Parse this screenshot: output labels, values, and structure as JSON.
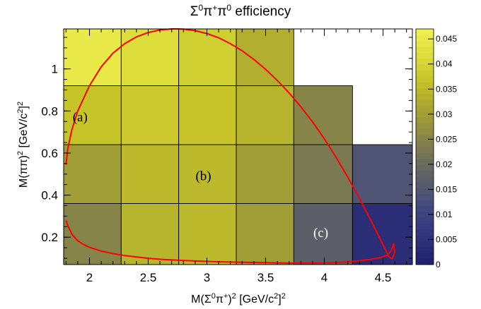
{
  "chart_data": {
    "type": "heatmap",
    "title": "Σ⁰π⁺π⁰ efficiency",
    "title_parts": [
      "Σ",
      "0",
      "π",
      "+",
      "π",
      "0",
      " efficiency"
    ],
    "xlabel": "M(Σ⁰π⁺)² [GeV/c²]²",
    "xlabel_parts": [
      "M(Σ",
      "0",
      "π",
      "+",
      ")",
      "2",
      " [GeV/c",
      "2",
      "]",
      "2"
    ],
    "ylabel": "M(ππ)² [GeV/c²]²",
    "ylabel_parts": [
      "M(ππ)",
      "2",
      " [GeV/c",
      "2",
      "]",
      "2"
    ],
    "xlim": [
      1.78,
      4.75
    ],
    "ylim": [
      0.07,
      1.19
    ],
    "x_ticks": [
      2,
      2.5,
      3,
      3.5,
      4,
      4.5
    ],
    "x_tick_labels": [
      "2",
      "2.5",
      "3",
      "3.5",
      "4",
      "4.5"
    ],
    "y_ticks": [
      0.2,
      0.4,
      0.6,
      0.8,
      1.0
    ],
    "y_tick_labels": [
      "0.2",
      "0.4",
      "0.6",
      "0.8",
      "1"
    ],
    "x_bin_edges": [
      1.78,
      2.27,
      2.76,
      3.25,
      3.74,
      4.24,
      4.75
    ],
    "y_bin_edges": [
      0.07,
      0.36,
      0.64,
      0.92,
      1.19
    ],
    "efficiency_rows_bottom_to_top": [
      [
        0.025,
        0.034,
        0.035,
        0.03,
        0.017,
        0.004
      ],
      [
        0.03,
        0.035,
        0.035,
        0.03,
        0.023,
        0.014
      ],
      [
        0.037,
        0.038,
        0.037,
        0.034,
        0.025,
        null
      ],
      [
        0.045,
        0.042,
        0.039,
        0.033,
        null,
        null
      ]
    ],
    "zlim": [
      0,
      0.047
    ],
    "colorbar_ticks": [
      0,
      0.005,
      0.01,
      0.015,
      0.02,
      0.025,
      0.03,
      0.035,
      0.04,
      0.045
    ],
    "colorbar_tick_labels": [
      "0",
      "0.005",
      "0.01",
      "0.015",
      "0.02",
      "0.025",
      "0.03",
      "0.035",
      "0.04",
      "0.045"
    ],
    "colorscale": [
      "#1f1f6e",
      "#2f317a",
      "#3f4482",
      "#565a6e",
      "#6e6e5a",
      "#8d8a44",
      "#a9a532",
      "#c5c229",
      "#dcdd3a",
      "#f1f152"
    ],
    "boundary_curve_color": "#ff0000",
    "dalitz_boundary": {
      "x": [
        1.8,
        1.815,
        1.85,
        1.9,
        1.95,
        2.0,
        2.1,
        2.2,
        2.3,
        2.4,
        2.5,
        2.6,
        2.7,
        2.755,
        2.8,
        2.9,
        3.0,
        3.1,
        3.2,
        3.3,
        3.4,
        3.5,
        3.6,
        3.7,
        3.8,
        3.9,
        4.0,
        4.1,
        4.2,
        4.3,
        4.4,
        4.5,
        4.55,
        4.58,
        4.6,
        4.59,
        4.57,
        4.54,
        4.48,
        4.4,
        4.3,
        4.2,
        4.1,
        4.0,
        3.9,
        3.8,
        3.7,
        3.6,
        3.5,
        3.4,
        3.3,
        3.2,
        3.1,
        3.0,
        2.9,
        2.8,
        2.7,
        2.6,
        2.5,
        2.4,
        2.3,
        2.2,
        2.1,
        2.0,
        1.95,
        1.9,
        1.85,
        1.815,
        1.8
      ],
      "y": [
        0.545,
        0.62,
        0.71,
        0.8,
        0.86,
        0.92,
        1.01,
        1.075,
        1.12,
        1.152,
        1.173,
        1.185,
        1.19,
        1.19,
        1.189,
        1.182,
        1.168,
        1.148,
        1.12,
        1.086,
        1.045,
        0.998,
        0.945,
        0.886,
        0.82,
        0.748,
        0.668,
        0.58,
        0.485,
        0.383,
        0.276,
        0.164,
        0.106,
        0.098,
        0.13,
        0.17,
        0.135,
        0.116,
        0.104,
        0.095,
        0.088,
        0.083,
        0.08,
        0.078,
        0.077,
        0.077,
        0.077,
        0.078,
        0.079,
        0.08,
        0.081,
        0.082,
        0.083,
        0.085,
        0.087,
        0.089,
        0.092,
        0.095,
        0.1,
        0.106,
        0.113,
        0.122,
        0.134,
        0.152,
        0.165,
        0.183,
        0.215,
        0.255,
        0.28
      ]
    },
    "annotations": [
      {
        "text": "(a)",
        "x": 1.92,
        "y": 0.75,
        "color": "#000000"
      },
      {
        "text": "(b)",
        "x": 2.97,
        "y": 0.47,
        "color": "#000000"
      },
      {
        "text": "(c)",
        "x": 3.97,
        "y": 0.2,
        "color": "#ffffff"
      }
    ],
    "grid": true,
    "legend": "colorbar-right"
  }
}
